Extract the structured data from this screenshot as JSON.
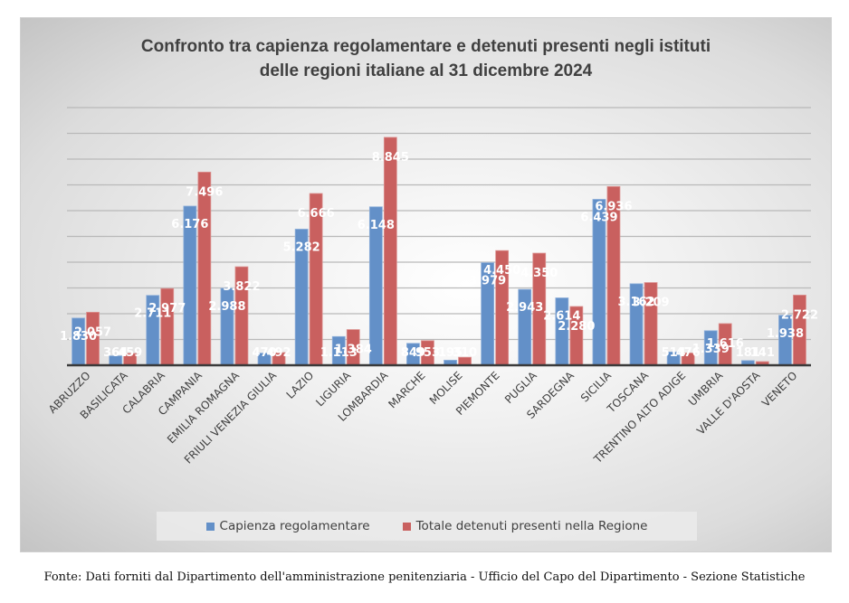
{
  "chart_data": {
    "type": "bar",
    "title": "Confronto tra capienza regolamentare e detenuti presenti negli istituti delle regioni italiane al 31 dicembre 2024",
    "title_lines": [
      "Confronto tra capienza regolamentare e detenuti presenti negli istituti",
      "delle regioni italiane al 31 dicembre 2024"
    ],
    "xlabel": "",
    "ylabel": "",
    "ylim": [
      0,
      10000
    ],
    "ytick_step": 1000,
    "y_tick_labels_shown": false,
    "grid": true,
    "legend_position": "bottom",
    "categories": [
      "ABRUZZO",
      "BASILICATA",
      "CALABRIA",
      "CAMPANIA",
      "EMILIA ROMAGNA",
      "FRIULI VENEZIA GIULIA",
      "LAZIO",
      "LIGURIA",
      "LOMBARDIA",
      "MARCHE",
      "MOLISE",
      "PIEMONTE",
      "PUGLIA",
      "SARDEGNA",
      "SICILIA",
      "TOSCANA",
      "TRENTINO ALTO ADIGE",
      "UMBRIA",
      "VALLE D'AOSTA",
      "VENETO"
    ],
    "series": [
      {
        "name": "Capienza regolamentare",
        "color": "#6390c8",
        "values": [
          1830,
          364,
          2711,
          6176,
          2988,
          470,
          5282,
          1113,
          6148,
          849,
          195,
          3979,
          2943,
          2614,
          6439,
          3162,
          514,
          1339,
          181,
          1938
        ],
        "labels": [
          "1.830",
          "364",
          "2.711",
          "6.176",
          "2.988",
          "470",
          "5.282",
          "1.113",
          "6.148",
          "849",
          "195",
          "3.979",
          "2.943",
          "2.614",
          "6.439",
          "3.162",
          "514",
          "1.339",
          "181",
          "1.938"
        ]
      },
      {
        "name": "Totale detenuti presenti nella Regione",
        "color": "#c9605f",
        "values": [
          2057,
          459,
          2977,
          7496,
          3822,
          492,
          6666,
          1384,
          8845,
          953,
          310,
          4450,
          4350,
          2280,
          6936,
          3209,
          476,
          1616,
          141,
          2722
        ],
        "labels": [
          "2.057",
          "459",
          "2.977",
          "7.496",
          "3.822",
          "492",
          "6.666",
          "1.384",
          "8.845",
          "953",
          "310",
          "4.450",
          "4.350",
          "2.280",
          "6.936",
          "3.209",
          "476",
          "1.616",
          "141",
          "2.722"
        ]
      }
    ]
  },
  "legend": {
    "items": [
      {
        "label": "Capienza regolamentare",
        "color": "#6390c8"
      },
      {
        "label": "Totale detenuti presenti nella Regione",
        "color": "#c9605f"
      }
    ]
  },
  "source_note": "Fonte: Dati forniti dal Dipartimento dell'amministrazione penitenziaria - Ufficio del Capo del Dipartimento - Sezione Statistiche"
}
